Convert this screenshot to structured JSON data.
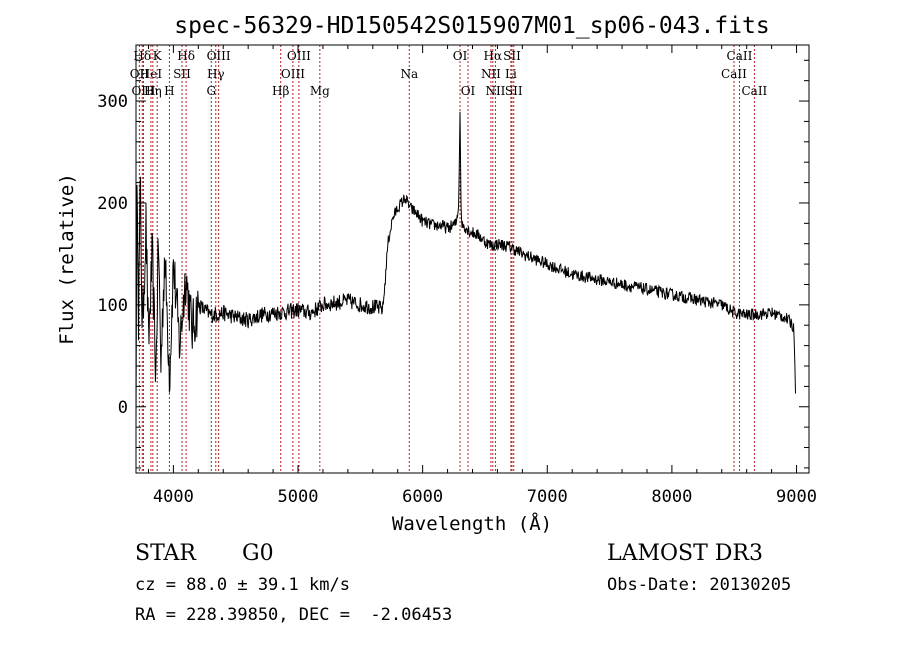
{
  "chart_data": {
    "type": "line",
    "title": "spec-56329-HD150542S015907M01_sp06-043.fits",
    "xlabel": "Wavelength (Å)",
    "ylabel": "Flux (relative)",
    "xlim": [
      3700,
      9100
    ],
    "ylim": [
      -65,
      355
    ],
    "x_ticks": [
      4000,
      5000,
      6000,
      7000,
      8000,
      9000
    ],
    "y_ticks": [
      0,
      100,
      200,
      300
    ],
    "series": [
      {
        "name": "flux",
        "anchors": [
          [
            3700,
            5
          ],
          [
            3710,
            240
          ],
          [
            3720,
            90
          ],
          [
            3735,
            220
          ],
          [
            3750,
            70
          ],
          [
            3780,
            180
          ],
          [
            3800,
            60
          ],
          [
            3830,
            150
          ],
          [
            3860,
            30
          ],
          [
            3880,
            165
          ],
          [
            3900,
            40
          ],
          [
            3930,
            150
          ],
          [
            3970,
            30
          ],
          [
            4000,
            140
          ],
          [
            4050,
            60
          ],
          [
            4100,
            130
          ],
          [
            4150,
            75
          ],
          [
            4200,
            100
          ],
          [
            4300,
            90
          ],
          [
            4400,
            92
          ],
          [
            4500,
            88
          ],
          [
            4600,
            85
          ],
          [
            4700,
            90
          ],
          [
            4800,
            92
          ],
          [
            4900,
            93
          ],
          [
            5000,
            95
          ],
          [
            5100,
            92
          ],
          [
            5200,
            100
          ],
          [
            5300,
            102
          ],
          [
            5400,
            104
          ],
          [
            5500,
            100
          ],
          [
            5600,
            98
          ],
          [
            5680,
            96
          ],
          [
            5700,
            125
          ],
          [
            5720,
            160
          ],
          [
            5760,
            185
          ],
          [
            5800,
            195
          ],
          [
            5860,
            205
          ],
          [
            5900,
            195
          ],
          [
            5950,
            190
          ],
          [
            6000,
            182
          ],
          [
            6080,
            178
          ],
          [
            6150,
            178
          ],
          [
            6200,
            175
          ],
          [
            6270,
            180
          ],
          [
            6290,
            200
          ],
          [
            6300,
            290
          ],
          [
            6310,
            180
          ],
          [
            6380,
            172
          ],
          [
            6450,
            168
          ],
          [
            6500,
            162
          ],
          [
            6560,
            158
          ],
          [
            6600,
            160
          ],
          [
            6700,
            157
          ],
          [
            6800,
            150
          ],
          [
            6900,
            145
          ],
          [
            7000,
            140
          ],
          [
            7100,
            135
          ],
          [
            7200,
            130
          ],
          [
            7400,
            125
          ],
          [
            7600,
            120
          ],
          [
            7800,
            115
          ],
          [
            8000,
            110
          ],
          [
            8200,
            105
          ],
          [
            8400,
            100
          ],
          [
            8500,
            92
          ],
          [
            8600,
            90
          ],
          [
            8700,
            91
          ],
          [
            8800,
            92
          ],
          [
            8900,
            88
          ],
          [
            8960,
            82
          ],
          [
            8980,
            75
          ],
          [
            8995,
            5
          ]
        ]
      }
    ],
    "lines": [
      {
        "label": "Hδ",
        "wl": 3750,
        "row": 0
      },
      {
        "label": "OII",
        "wl": 3727,
        "row": 1
      },
      {
        "label": "OIII",
        "wl": 3760,
        "row": 2
      },
      {
        "label": "K",
        "wl": 3870,
        "row": 0
      },
      {
        "label": "HeI",
        "wl": 3820,
        "row": 1
      },
      {
        "label": "Hη",
        "wl": 3835,
        "row": 2
      },
      {
        "label": "SII",
        "wl": 4069,
        "row": 1
      },
      {
        "label": "H",
        "wl": 3968,
        "row": 2
      },
      {
        "label": "Hδ",
        "wl": 4102,
        "row": 0
      },
      {
        "label": "OIII",
        "wl": 4363,
        "row": 0
      },
      {
        "label": "Hγ",
        "wl": 4340,
        "row": 1
      },
      {
        "label": "G",
        "wl": 4304,
        "row": 2
      },
      {
        "label": "Hβ",
        "wl": 4861,
        "row": 2
      },
      {
        "label": "OIII",
        "wl": 5007,
        "row": 0
      },
      {
        "label": "OIII",
        "wl": 4959,
        "row": 1
      },
      {
        "label": "Mg",
        "wl": 5175,
        "row": 2
      },
      {
        "label": "Na",
        "wl": 5893,
        "row": 1
      },
      {
        "label": "OI",
        "wl": 6300,
        "row": 0
      },
      {
        "label": "OI",
        "wl": 6364,
        "row": 2
      },
      {
        "label": "Hα",
        "wl": 6563,
        "row": 0
      },
      {
        "label": "NII",
        "wl": 6548,
        "row": 1
      },
      {
        "label": "NII",
        "wl": 6584,
        "row": 2
      },
      {
        "label": "SII",
        "wl": 6717,
        "row": 0
      },
      {
        "label": "Li",
        "wl": 6708,
        "row": 1
      },
      {
        "label": "SII",
        "wl": 6731,
        "row": 2
      },
      {
        "label": "CaII",
        "wl": 8542,
        "row": 0
      },
      {
        "label": "CaII",
        "wl": 8498,
        "row": 1
      },
      {
        "label": "CaII",
        "wl": 8662,
        "row": 2
      }
    ]
  },
  "info": {
    "object_type": "STAR",
    "subclass": "G0",
    "survey": "LAMOST DR3",
    "redshift": "cz = 88.0 ± 39.1 km/s",
    "obs_date": "Obs-Date: 20130205",
    "coords": "RA = 228.39850, DEC =  -2.06453"
  },
  "colors": {
    "line": "#000000",
    "marker": "#b22222",
    "axes": "#000000"
  }
}
